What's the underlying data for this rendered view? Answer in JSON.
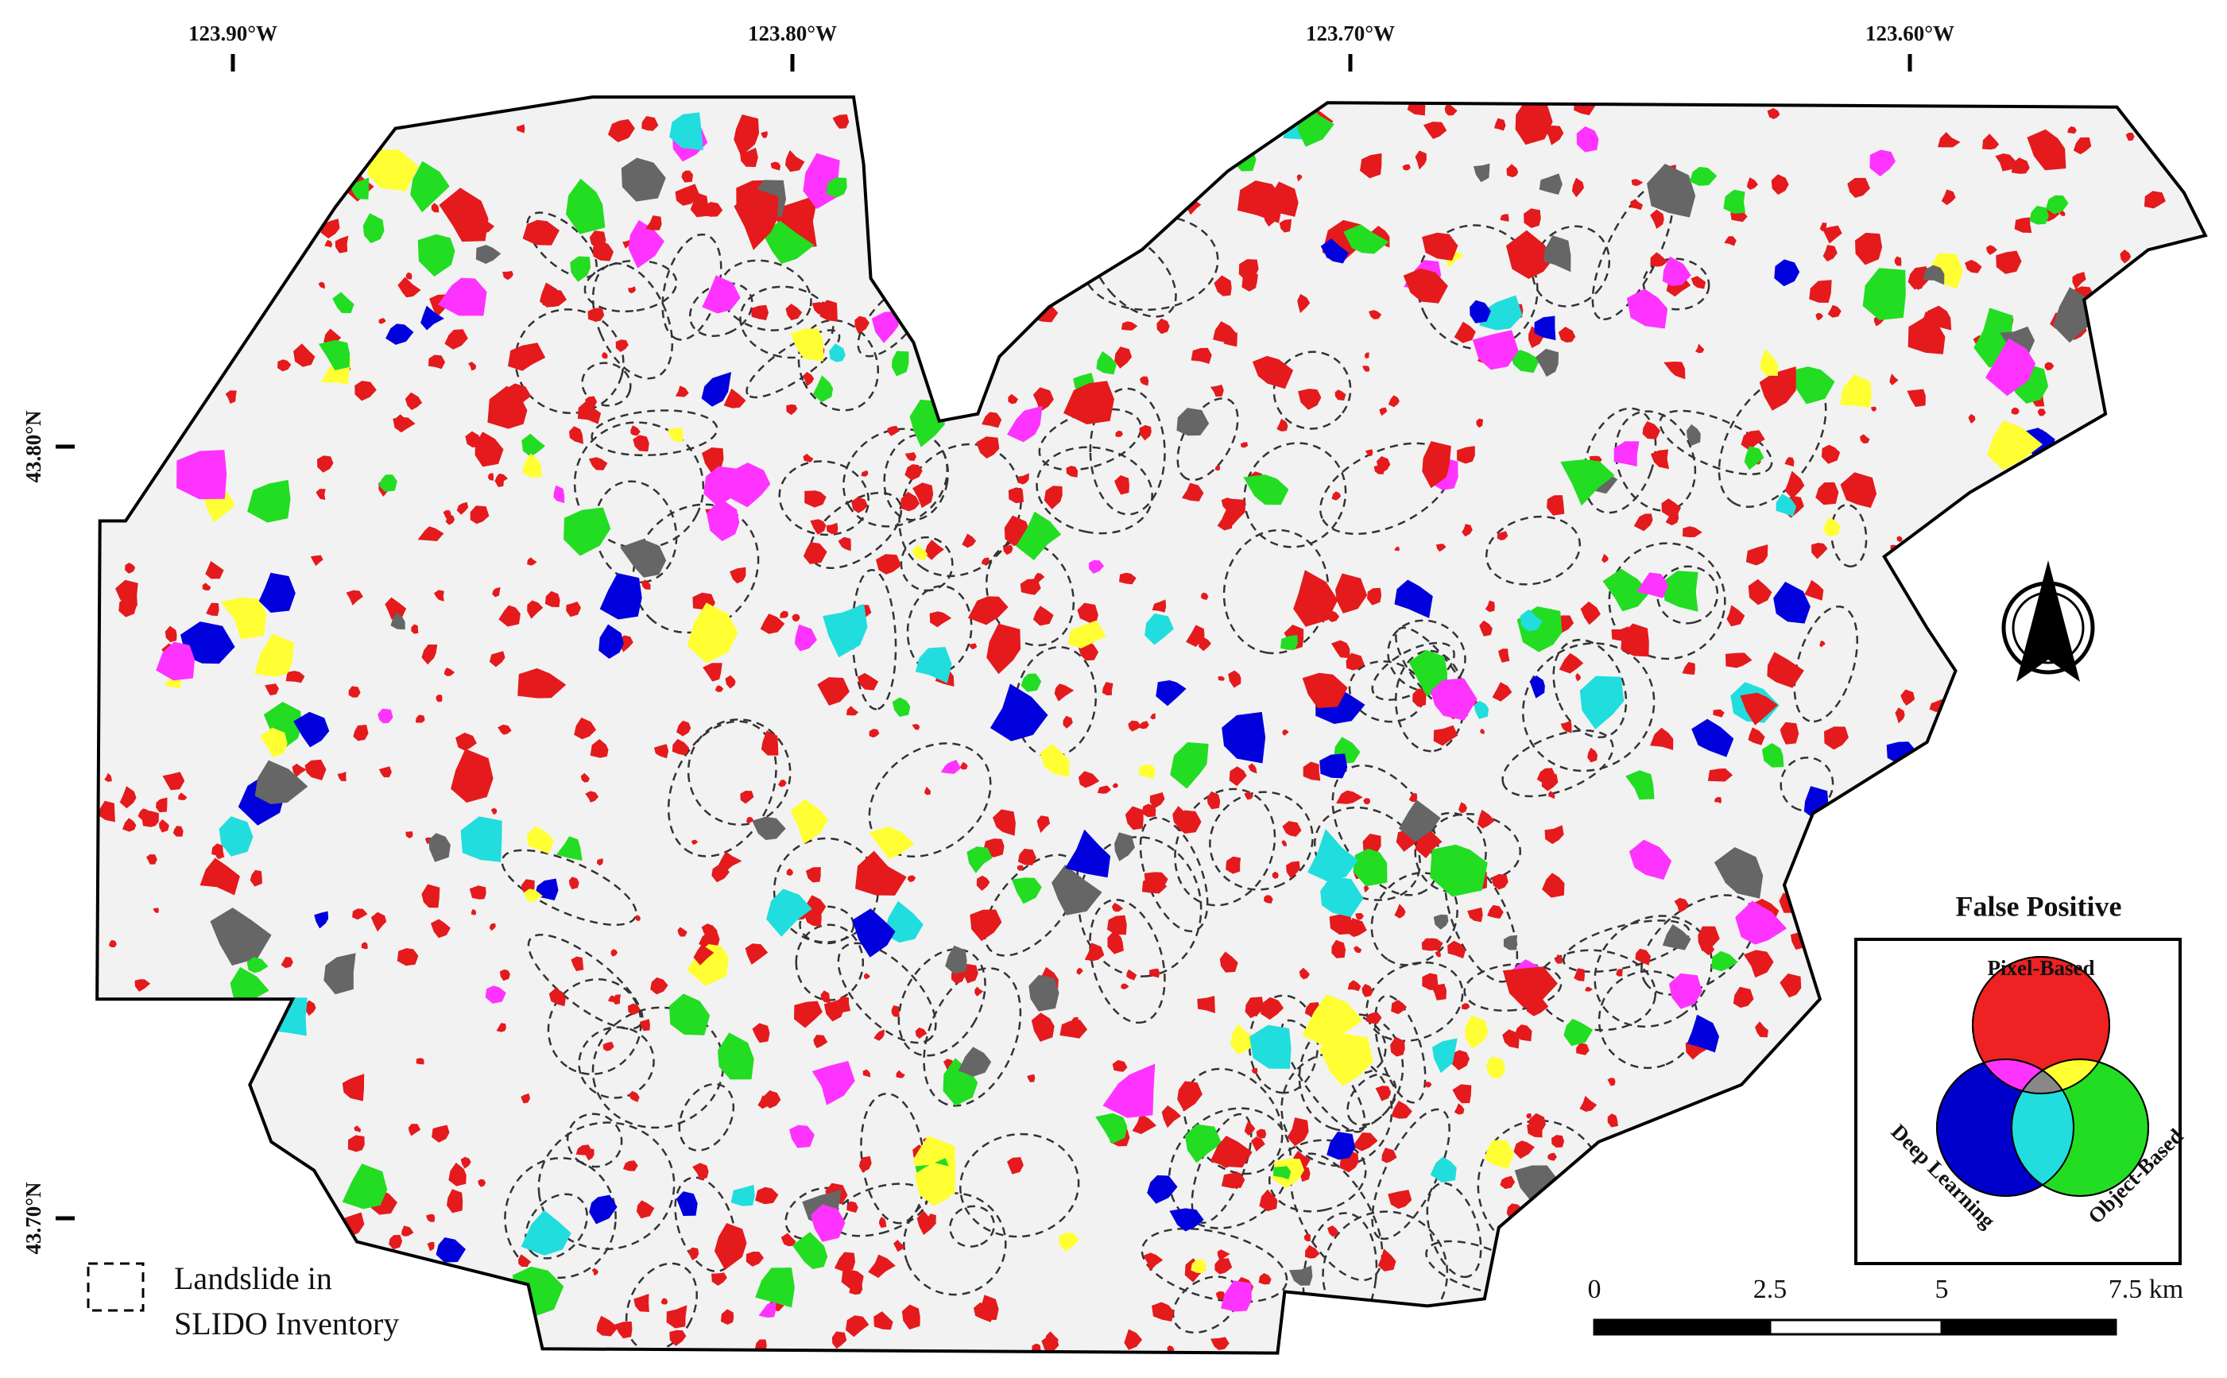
{
  "map": {
    "longitude_labels": [
      "123.90°W",
      "123.80°W",
      "123.70°W",
      "123.60°W"
    ],
    "latitude_labels": [
      "43.80°N",
      "43.70°N"
    ],
    "legend": {
      "title": "False Positive",
      "sets": [
        "Pixel-Based",
        "Deep Learning",
        "Object-Based"
      ],
      "inventory": [
        "Landslide in",
        "SLIDO Inventory"
      ]
    },
    "scale_bar": {
      "labels": [
        "0",
        "2.5",
        "5",
        "7.5 km"
      ]
    }
  }
}
